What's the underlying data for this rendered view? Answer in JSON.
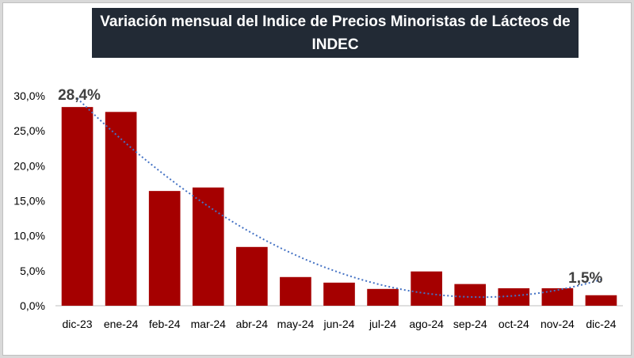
{
  "chart_data": {
    "type": "bar",
    "title": "Variación mensual del Indice de Precios Minoristas de Lácteos de INDEC",
    "categories": [
      "dic-23",
      "ene-24",
      "feb-24",
      "mar-24",
      "abr-24",
      "may-24",
      "jun-24",
      "jul-24",
      "ago-24",
      "sep-24",
      "oct-24",
      "nov-24",
      "dic-24"
    ],
    "values": [
      28.4,
      27.7,
      16.4,
      16.9,
      8.4,
      4.1,
      3.3,
      2.4,
      4.9,
      3.1,
      2.5,
      2.5,
      1.5
    ],
    "ylim": [
      0,
      30
    ],
    "yticks": [
      "0,0%",
      "5,0%",
      "10,0%",
      "15,0%",
      "20,0%",
      "25,0%",
      "30,0%"
    ],
    "ytick_values": [
      0,
      5,
      10,
      15,
      20,
      25,
      30
    ],
    "annotations": [
      {
        "category_index": 0,
        "text": "28,4%"
      },
      {
        "category_index": 12,
        "text": "1,5%"
      }
    ],
    "trendline": {
      "type": "polynomial",
      "style": "dotted",
      "color": "#4472c4"
    },
    "bar_color": "#a50000",
    "xlabel": "",
    "ylabel": "",
    "grid": false
  }
}
